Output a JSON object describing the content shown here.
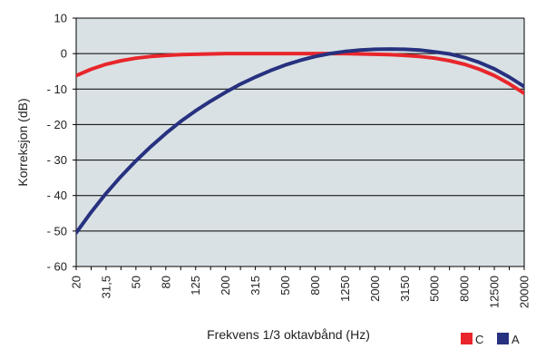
{
  "chart_data": {
    "type": "line",
    "title": "",
    "xlabel": "Frekvens 1/3 oktavbånd (Hz)",
    "ylabel": "Korreksjon (dB)",
    "ylim": [
      -60,
      10
    ],
    "yticks": [
      10,
      0,
      -10,
      -20,
      -30,
      -40,
      -50,
      -60
    ],
    "ytick_labels": [
      "10",
      "0",
      "- 10",
      "- 20",
      "- 30",
      "- 40",
      "- 50",
      "- 60"
    ],
    "x_bands": [
      "20",
      "25",
      "31,5",
      "40",
      "50",
      "63",
      "80",
      "100",
      "125",
      "160",
      "200",
      "250",
      "315",
      "400",
      "500",
      "630",
      "800",
      "1000",
      "1250",
      "1600",
      "2000",
      "2500",
      "3150",
      "4000",
      "5000",
      "6300",
      "8000",
      "10000",
      "12500",
      "16000",
      "20000"
    ],
    "x_tick_labels": [
      "20",
      "31,5",
      "50",
      "80",
      "125",
      "200",
      "315",
      "500",
      "800",
      "1250",
      "2000",
      "3150",
      "5000",
      "8000",
      "12500",
      "20000"
    ],
    "grid": "horizontal",
    "legend_position": "bottom-right",
    "series": [
      {
        "name": "C",
        "color": "#e8262b",
        "values": [
          -6.2,
          -4.4,
          -3.0,
          -2.0,
          -1.3,
          -0.8,
          -0.5,
          -0.3,
          -0.2,
          -0.1,
          0,
          0,
          0,
          0,
          0,
          0,
          0,
          0,
          0,
          -0.1,
          -0.2,
          -0.3,
          -0.5,
          -0.8,
          -1.3,
          -2.0,
          -3.0,
          -4.4,
          -6.2,
          -8.5,
          -11.2
        ]
      },
      {
        "name": "A",
        "color": "#27317f",
        "values": [
          -50.5,
          -44.7,
          -39.4,
          -34.6,
          -30.2,
          -26.2,
          -22.5,
          -19.1,
          -16.1,
          -13.4,
          -10.9,
          -8.6,
          -6.6,
          -4.8,
          -3.2,
          -1.9,
          -0.8,
          0,
          0.6,
          1.0,
          1.2,
          1.3,
          1.2,
          1.0,
          0.5,
          -0.1,
          -1.1,
          -2.5,
          -4.3,
          -6.6,
          -9.3
        ]
      }
    ]
  }
}
